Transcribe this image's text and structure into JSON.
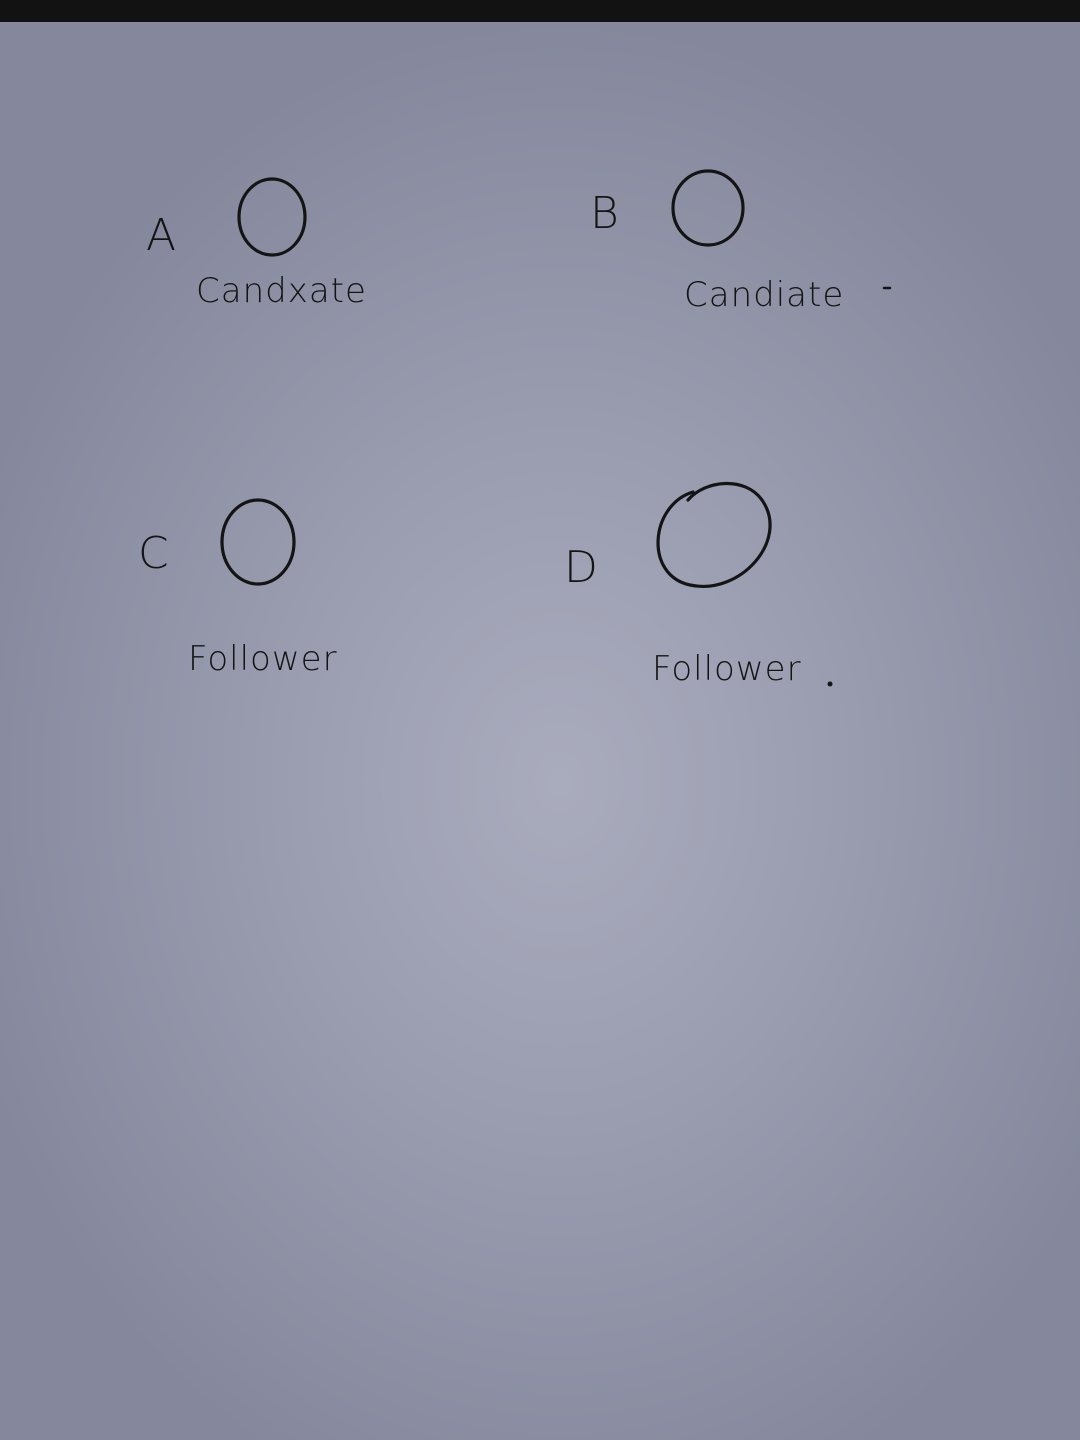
{
  "nodes": [
    {
      "letter": "A",
      "role": "Candxate",
      "filled": true
    },
    {
      "letter": "B",
      "role": "Candiate",
      "filled": true
    },
    {
      "letter": "C",
      "role": "Follower",
      "filled": false
    },
    {
      "letter": "D",
      "role": "Follower",
      "filled": false
    }
  ],
  "colors": {
    "ink": "#141414",
    "paper": "#a3a6b8"
  }
}
